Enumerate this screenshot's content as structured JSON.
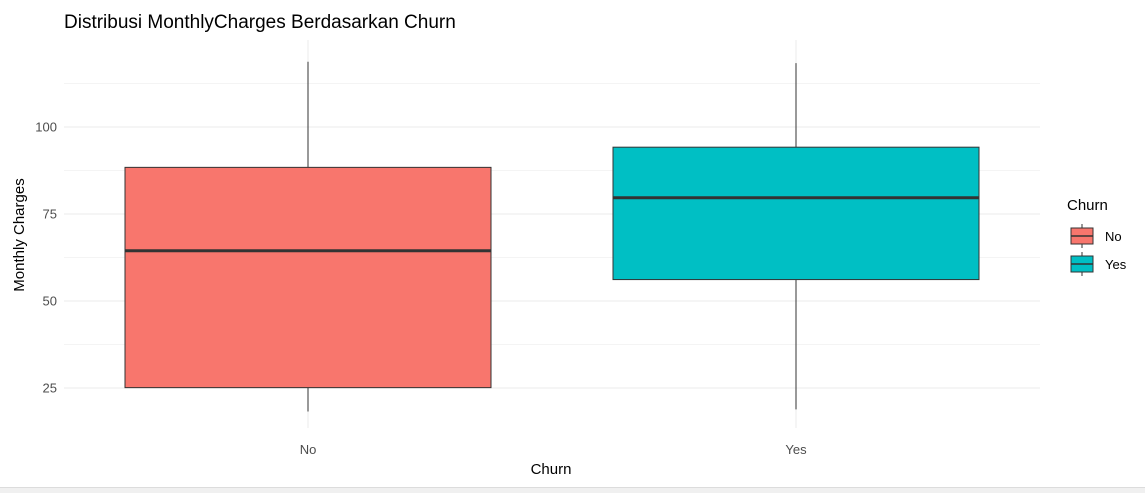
{
  "chart_data": {
    "type": "boxplot",
    "title": "Distribusi MonthlyCharges Berdasarkan Churn",
    "xlabel": "Churn",
    "ylabel": "Monthly Charges",
    "ylim": [
      13.5,
      125
    ],
    "yticks": [
      25,
      50,
      75,
      100
    ],
    "grid": true,
    "legend": {
      "title": "Churn",
      "position": "right"
    },
    "categories": [
      "No",
      "Yes"
    ],
    "series": [
      {
        "name": "No",
        "color": "#F8766D",
        "min": 18.25,
        "q1": 25.1,
        "median": 64.43,
        "q3": 88.4,
        "max": 118.75
      },
      {
        "name": "Yes",
        "color": "#00BFC4",
        "min": 18.85,
        "q1": 56.15,
        "median": 79.65,
        "q3": 94.2,
        "max": 118.35
      }
    ]
  },
  "colors": {
    "box_stroke": "#333333",
    "grid_major": "#ebebeb",
    "grid_minor": "#f4f4f4",
    "tick_text": "#4d4d4d"
  }
}
